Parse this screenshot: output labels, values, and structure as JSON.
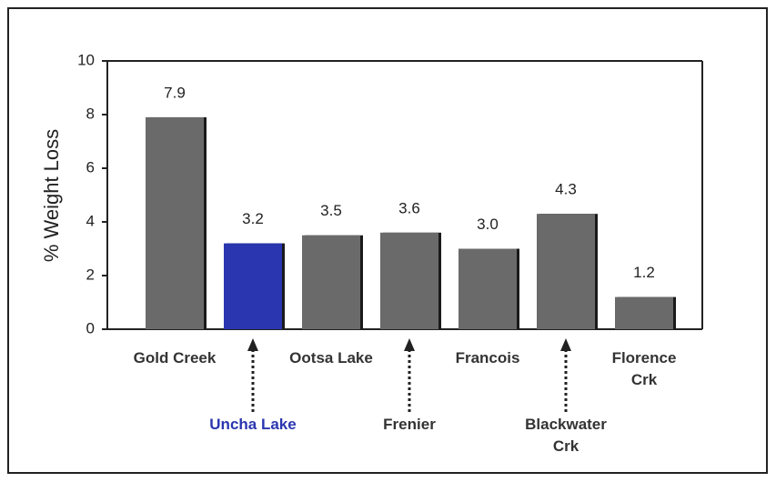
{
  "chart_data": {
    "type": "bar",
    "y_label": "% Weight Loss",
    "categories": [
      "Gold Creek",
      "Uncha Lake",
      "Ootsa Lake",
      "Frenier",
      "Francois",
      "Blackwater Crk",
      "Florence Crk"
    ],
    "values": [
      7.9,
      3.2,
      3.5,
      3.6,
      3.0,
      4.3,
      1.2
    ],
    "value_labels": [
      "7.9",
      "3.2",
      "3.5",
      "3.6",
      "3.0",
      "4.3",
      "1.2"
    ],
    "color": "#6a6a6a",
    "colors": [
      "#6a6a6a",
      "#2a36b0",
      "#6a6a6a",
      "#6a6a6a",
      "#6a6a6a",
      "#6a6a6a",
      "#6a6a6a"
    ],
    "ylim": [
      0,
      10
    ],
    "yticks": [
      0,
      2,
      4,
      6,
      8,
      10
    ],
    "grid": false
  }
}
